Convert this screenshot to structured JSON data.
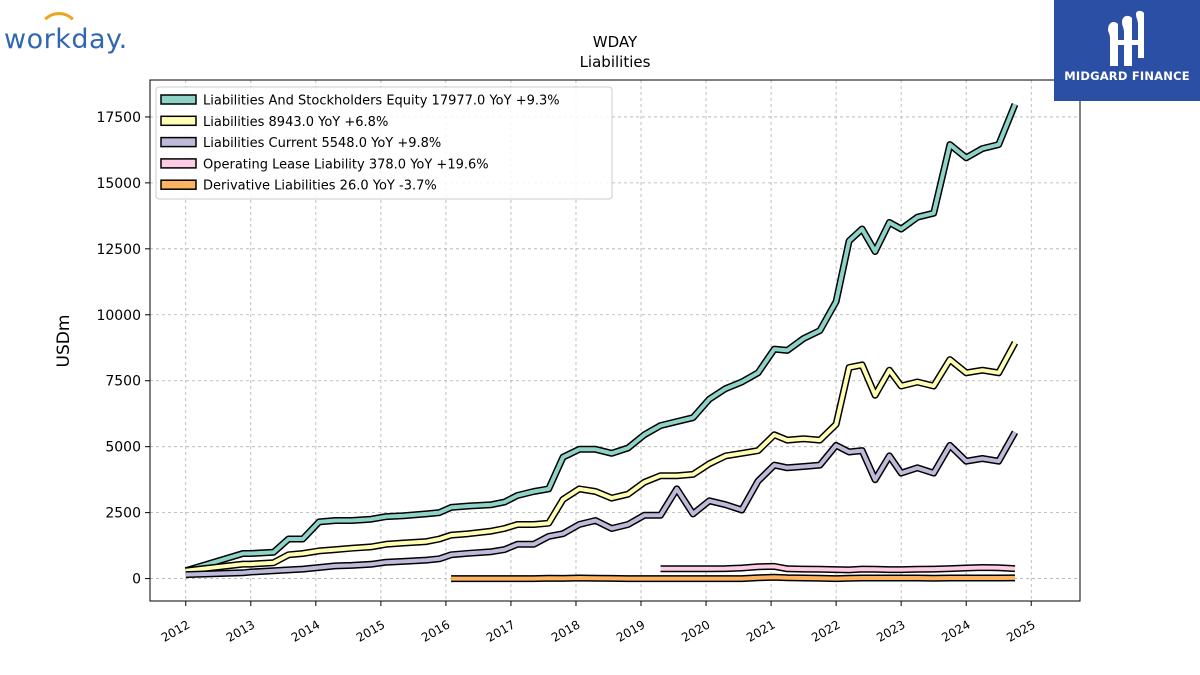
{
  "branding": {
    "left_logo_text": "workday.",
    "right_logo_text": "MIDGARD FINANCE"
  },
  "chart_data": {
    "type": "line",
    "title": "WDAY",
    "subtitle": "Liabilities",
    "xlabel": "",
    "ylabel": "USDm",
    "xlim": [
      2011.45,
      2025.75
    ],
    "ylim": [
      -850,
      18900
    ],
    "x_ticks": [
      2012,
      2013,
      2014,
      2015,
      2016,
      2017,
      2018,
      2019,
      2020,
      2021,
      2022,
      2023,
      2024,
      2025
    ],
    "y_ticks": [
      0,
      2500,
      5000,
      7500,
      10000,
      12500,
      15000,
      17500
    ],
    "grid": true,
    "legend_position": "top-left",
    "series": [
      {
        "name": "Liabilities And Stockholders Equity",
        "legend": "Liabilities And Stockholders Equity  17977.0 YoY +9.3%",
        "color": "#8dd3c7",
        "points": [
          [
            2012.0,
            300
          ],
          [
            2012.88,
            950
          ],
          [
            2013.0,
            950
          ],
          [
            2013.35,
            1000
          ],
          [
            2013.58,
            1500
          ],
          [
            2013.8,
            1500
          ],
          [
            2014.05,
            2150
          ],
          [
            2014.3,
            2200
          ],
          [
            2014.55,
            2200
          ],
          [
            2014.85,
            2250
          ],
          [
            2015.08,
            2350
          ],
          [
            2015.35,
            2380
          ],
          [
            2015.7,
            2450
          ],
          [
            2015.9,
            2500
          ],
          [
            2016.08,
            2700
          ],
          [
            2016.35,
            2750
          ],
          [
            2016.7,
            2800
          ],
          [
            2016.9,
            2900
          ],
          [
            2017.1,
            3150
          ],
          [
            2017.35,
            3300
          ],
          [
            2017.58,
            3400
          ],
          [
            2017.8,
            4600
          ],
          [
            2018.05,
            4900
          ],
          [
            2018.3,
            4900
          ],
          [
            2018.55,
            4750
          ],
          [
            2018.8,
            4950
          ],
          [
            2019.05,
            5450
          ],
          [
            2019.3,
            5800
          ],
          [
            2019.55,
            5950
          ],
          [
            2019.8,
            6100
          ],
          [
            2020.05,
            6800
          ],
          [
            2020.3,
            7200
          ],
          [
            2020.55,
            7450
          ],
          [
            2020.8,
            7800
          ],
          [
            2021.05,
            8700
          ],
          [
            2021.25,
            8650
          ],
          [
            2021.5,
            9100
          ],
          [
            2021.75,
            9400
          ],
          [
            2022.0,
            10500
          ],
          [
            2022.2,
            12800
          ],
          [
            2022.4,
            13250
          ],
          [
            2022.6,
            12400
          ],
          [
            2022.82,
            13500
          ],
          [
            2023.0,
            13250
          ],
          [
            2023.25,
            13700
          ],
          [
            2023.5,
            13850
          ],
          [
            2023.75,
            16450
          ],
          [
            2024.0,
            15950
          ],
          [
            2024.25,
            16300
          ],
          [
            2024.5,
            16450
          ],
          [
            2024.75,
            17977
          ]
        ]
      },
      {
        "name": "Liabilities",
        "legend": "Liabilities  8943.0 YoY +6.8%",
        "color": "#ffffb3",
        "points": [
          [
            2012.0,
            300
          ],
          [
            2012.88,
            550
          ],
          [
            2013.0,
            550
          ],
          [
            2013.35,
            600
          ],
          [
            2013.58,
            900
          ],
          [
            2013.8,
            950
          ],
          [
            2014.05,
            1050
          ],
          [
            2014.3,
            1100
          ],
          [
            2014.55,
            1150
          ],
          [
            2014.85,
            1200
          ],
          [
            2015.08,
            1300
          ],
          [
            2015.35,
            1350
          ],
          [
            2015.7,
            1400
          ],
          [
            2015.9,
            1500
          ],
          [
            2016.08,
            1650
          ],
          [
            2016.35,
            1700
          ],
          [
            2016.7,
            1800
          ],
          [
            2016.9,
            1900
          ],
          [
            2017.1,
            2050
          ],
          [
            2017.35,
            2050
          ],
          [
            2017.58,
            2100
          ],
          [
            2017.8,
            3000
          ],
          [
            2018.05,
            3400
          ],
          [
            2018.3,
            3300
          ],
          [
            2018.55,
            3050
          ],
          [
            2018.8,
            3200
          ],
          [
            2019.05,
            3650
          ],
          [
            2019.3,
            3900
          ],
          [
            2019.55,
            3900
          ],
          [
            2019.8,
            3950
          ],
          [
            2020.05,
            4350
          ],
          [
            2020.3,
            4650
          ],
          [
            2020.55,
            4750
          ],
          [
            2020.8,
            4850
          ],
          [
            2021.05,
            5450
          ],
          [
            2021.25,
            5250
          ],
          [
            2021.5,
            5300
          ],
          [
            2021.75,
            5250
          ],
          [
            2022.0,
            5850
          ],
          [
            2022.2,
            8000
          ],
          [
            2022.4,
            8100
          ],
          [
            2022.6,
            6950
          ],
          [
            2022.82,
            7900
          ],
          [
            2023.0,
            7300
          ],
          [
            2023.25,
            7450
          ],
          [
            2023.5,
            7300
          ],
          [
            2023.75,
            8300
          ],
          [
            2024.0,
            7800
          ],
          [
            2024.25,
            7900
          ],
          [
            2024.5,
            7800
          ],
          [
            2024.75,
            8943
          ]
        ]
      },
      {
        "name": "Liabilities Current",
        "legend": "Liabilities Current  5548.0 YoY +9.8%",
        "color": "#bebada",
        "points": [
          [
            2012.0,
            150
          ],
          [
            2012.88,
            220
          ],
          [
            2013.0,
            250
          ],
          [
            2013.35,
            300
          ],
          [
            2013.58,
            330
          ],
          [
            2013.8,
            360
          ],
          [
            2014.05,
            420
          ],
          [
            2014.3,
            480
          ],
          [
            2014.55,
            500
          ],
          [
            2014.85,
            540
          ],
          [
            2015.08,
            620
          ],
          [
            2015.35,
            650
          ],
          [
            2015.7,
            700
          ],
          [
            2015.9,
            750
          ],
          [
            2016.08,
            900
          ],
          [
            2016.35,
            960
          ],
          [
            2016.7,
            1020
          ],
          [
            2016.9,
            1100
          ],
          [
            2017.1,
            1300
          ],
          [
            2017.35,
            1300
          ],
          [
            2017.58,
            1600
          ],
          [
            2017.8,
            1700
          ],
          [
            2018.05,
            2050
          ],
          [
            2018.3,
            2200
          ],
          [
            2018.55,
            1900
          ],
          [
            2018.8,
            2050
          ],
          [
            2019.05,
            2400
          ],
          [
            2019.3,
            2400
          ],
          [
            2019.55,
            3400
          ],
          [
            2019.8,
            2450
          ],
          [
            2020.05,
            2950
          ],
          [
            2020.3,
            2800
          ],
          [
            2020.55,
            2600
          ],
          [
            2020.8,
            3700
          ],
          [
            2021.05,
            4300
          ],
          [
            2021.25,
            4200
          ],
          [
            2021.5,
            4250
          ],
          [
            2021.75,
            4300
          ],
          [
            2022.0,
            5050
          ],
          [
            2022.2,
            4800
          ],
          [
            2022.4,
            4850
          ],
          [
            2022.6,
            3750
          ],
          [
            2022.82,
            4650
          ],
          [
            2023.0,
            4000
          ],
          [
            2023.25,
            4200
          ],
          [
            2023.5,
            4000
          ],
          [
            2023.75,
            5050
          ],
          [
            2024.0,
            4450
          ],
          [
            2024.25,
            4550
          ],
          [
            2024.5,
            4450
          ],
          [
            2024.75,
            5548
          ]
        ]
      },
      {
        "name": "Operating Lease Liability",
        "legend": "Operating Lease Liability  378.0 YoY +19.6%",
        "color": "#fccde5",
        "points": [
          [
            2019.3,
            370
          ],
          [
            2019.55,
            370
          ],
          [
            2019.8,
            370
          ],
          [
            2020.05,
            370
          ],
          [
            2020.3,
            380
          ],
          [
            2020.55,
            400
          ],
          [
            2020.8,
            450
          ],
          [
            2021.05,
            460
          ],
          [
            2021.25,
            370
          ],
          [
            2021.5,
            360
          ],
          [
            2021.75,
            350
          ],
          [
            2022.0,
            340
          ],
          [
            2022.2,
            330
          ],
          [
            2022.4,
            360
          ],
          [
            2022.6,
            350
          ],
          [
            2022.82,
            340
          ],
          [
            2023.0,
            340
          ],
          [
            2023.25,
            350
          ],
          [
            2023.5,
            360
          ],
          [
            2023.75,
            380
          ],
          [
            2024.0,
            400
          ],
          [
            2024.25,
            420
          ],
          [
            2024.5,
            410
          ],
          [
            2024.75,
            378
          ]
        ]
      },
      {
        "name": "Derivative Liabilities",
        "legend": "Derivative Liabilities  26.0 YoY -3.7%",
        "color": "#fdb462",
        "points": [
          [
            2016.08,
            0
          ],
          [
            2016.35,
            0
          ],
          [
            2016.7,
            0
          ],
          [
            2016.9,
            0
          ],
          [
            2017.1,
            0
          ],
          [
            2017.35,
            0
          ],
          [
            2017.58,
            10
          ],
          [
            2017.8,
            5
          ],
          [
            2018.05,
            20
          ],
          [
            2018.3,
            10
          ],
          [
            2018.55,
            5
          ],
          [
            2018.8,
            0
          ],
          [
            2019.05,
            0
          ],
          [
            2019.3,
            0
          ],
          [
            2019.55,
            0
          ],
          [
            2019.8,
            0
          ],
          [
            2020.05,
            0
          ],
          [
            2020.3,
            0
          ],
          [
            2020.55,
            0
          ],
          [
            2020.8,
            30
          ],
          [
            2021.05,
            50
          ],
          [
            2021.25,
            30
          ],
          [
            2021.5,
            20
          ],
          [
            2021.75,
            10
          ],
          [
            2022.0,
            0
          ],
          [
            2022.2,
            10
          ],
          [
            2022.4,
            20
          ],
          [
            2022.6,
            20
          ],
          [
            2022.82,
            20
          ],
          [
            2023.0,
            20
          ],
          [
            2023.25,
            20
          ],
          [
            2023.5,
            10
          ],
          [
            2023.75,
            20
          ],
          [
            2024.0,
            20
          ],
          [
            2024.25,
            20
          ],
          [
            2024.5,
            20
          ],
          [
            2024.75,
            26
          ]
        ]
      }
    ]
  }
}
